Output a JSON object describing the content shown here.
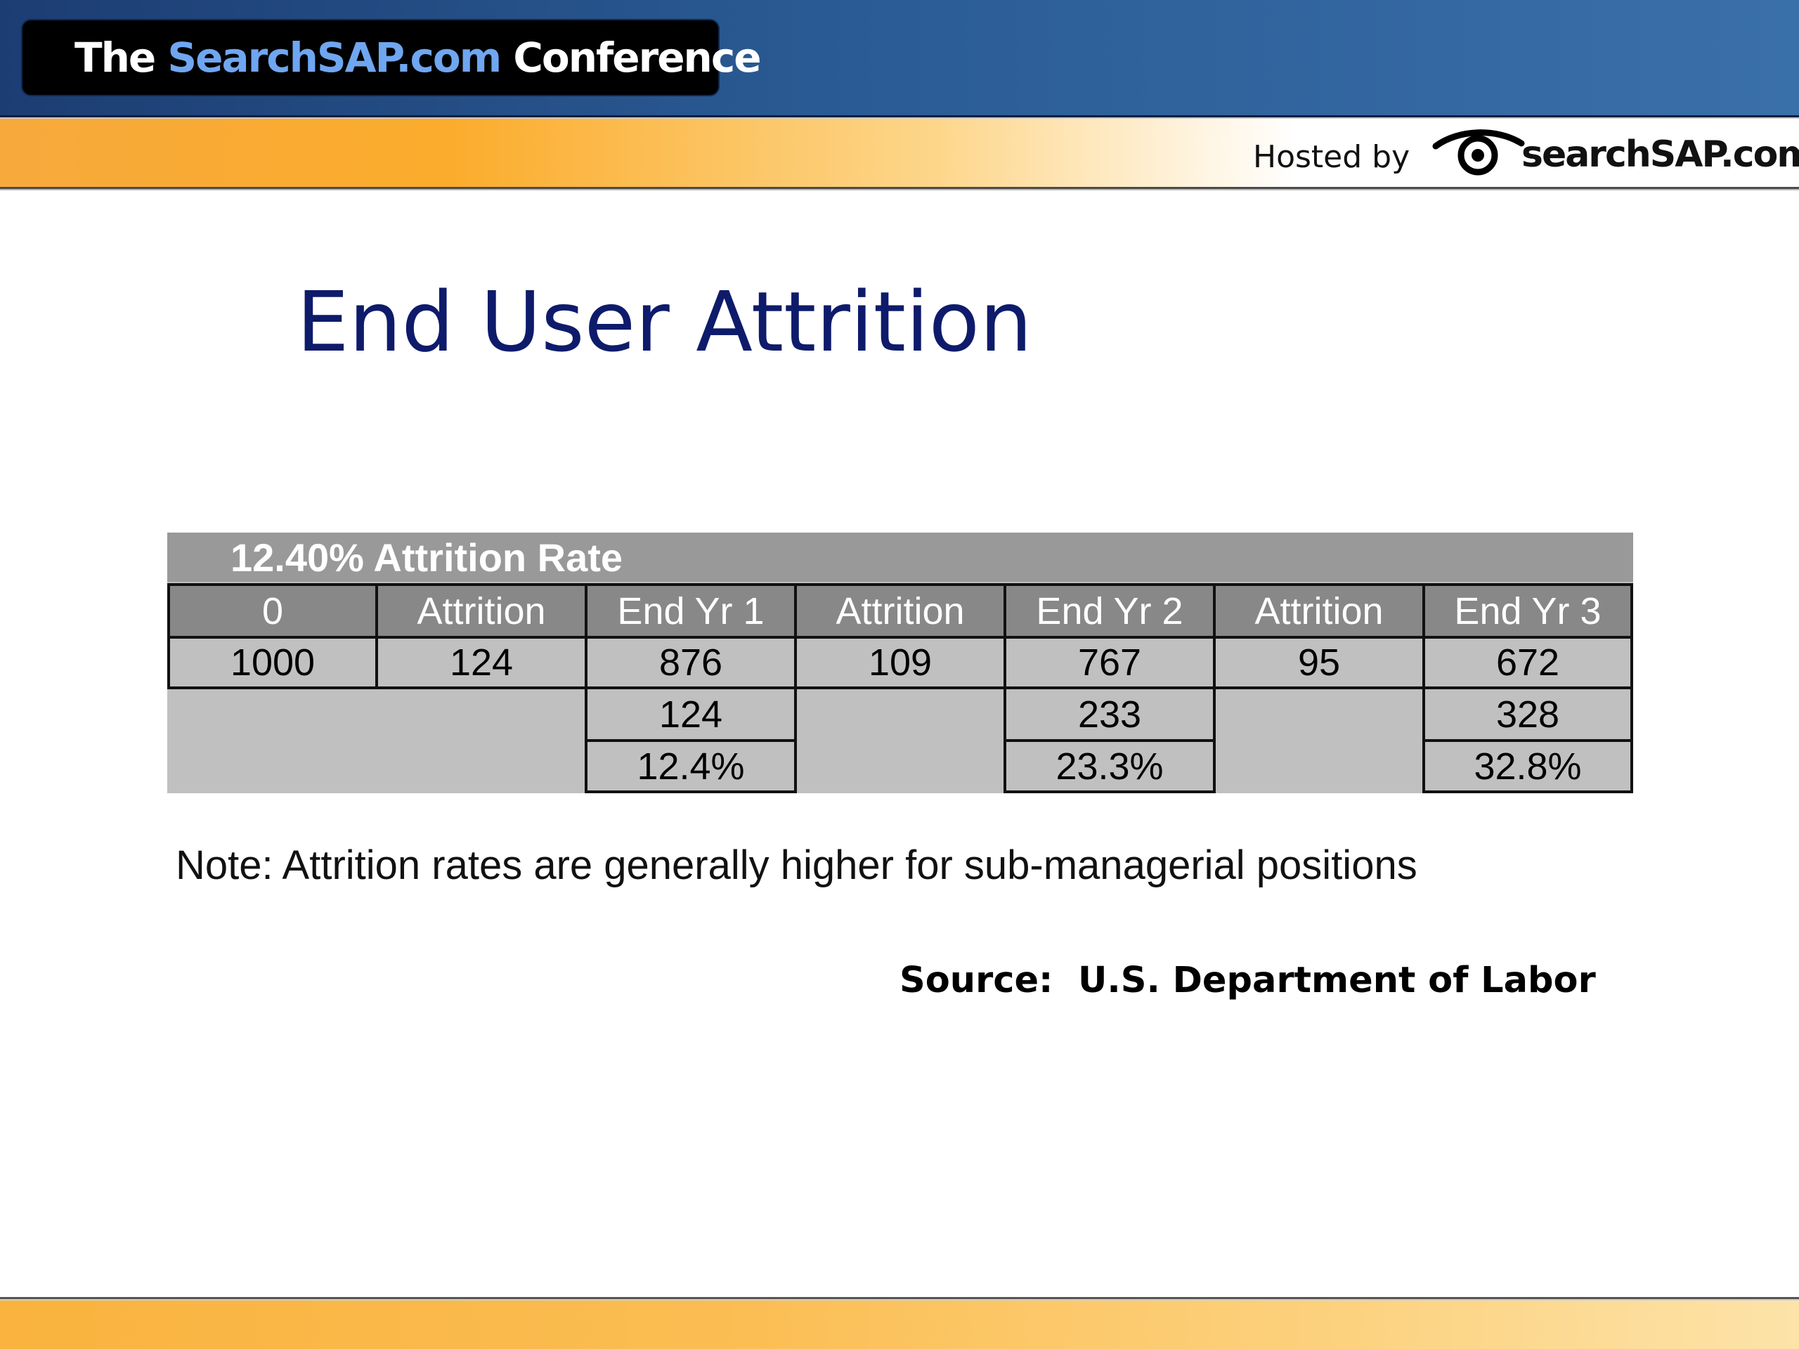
{
  "header": {
    "conference_prefix": "The ",
    "conference_brand": "SearchSAP.com",
    "conference_suffix": " Conference",
    "hosted_by": "Hosted by",
    "host_logo_text": "searchSAP.com",
    "host_logo_icon": "eye-icon"
  },
  "slide": {
    "title": "End User Attrition",
    "note": "Note: Attrition rates are generally higher for sub-managerial positions",
    "source": "Source:  U.S. Department of Labor"
  },
  "table": {
    "caption": "12.40% Attrition Rate",
    "headers": [
      "0",
      "Attrition",
      "End Yr 1",
      "Attrition",
      "End Yr 2",
      "Attrition",
      "End Yr 3"
    ],
    "row1": [
      "1000",
      "124",
      "876",
      "109",
      "767",
      "95",
      "672"
    ],
    "cumulative_loss": {
      "End Yr 1": "124",
      "End Yr 2": "233",
      "End Yr 3": "328"
    },
    "cumulative_pct": {
      "End Yr 1": "12.4%",
      "End Yr 2": "23.3%",
      "End Yr 3": "32.8%"
    }
  },
  "colors": {
    "title": "#0e1b6b",
    "header_blue": "#2a5a93",
    "accent_orange": "#fbac2c",
    "table_header_bg": "#888888",
    "table_body_bg": "#c0c0c0"
  }
}
